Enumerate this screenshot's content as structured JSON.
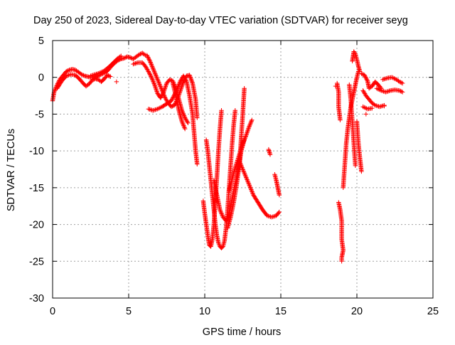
{
  "chart_data": {
    "type": "scatter",
    "title": "Day 250 of 2023, Sidereal Day-to-day VTEC variation (SDTVAR) for receiver seyg",
    "xlabel": "GPS time / hours",
    "ylabel": "SDTVAR / TECUs",
    "xlim": [
      0,
      25
    ],
    "ylim": [
      -30,
      5
    ],
    "xticks": [
      0,
      5,
      10,
      15,
      20,
      25
    ],
    "yticks": [
      5,
      0,
      -5,
      -10,
      -15,
      -20,
      -25,
      -30
    ],
    "grid": true,
    "marker": "+",
    "series": [
      {
        "name": "SDTVAR",
        "color": "#ff0000",
        "tracks": [
          [
            [
              0.0,
              -3.2
            ],
            [
              0.1,
              -2.0
            ],
            [
              0.3,
              -1.0
            ],
            [
              0.5,
              -0.2
            ],
            [
              0.7,
              0.3
            ],
            [
              0.9,
              0.8
            ],
            [
              1.1,
              1.0
            ],
            [
              1.3,
              1.1
            ],
            [
              1.5,
              1.0
            ],
            [
              1.7,
              0.7
            ],
            [
              1.9,
              0.4
            ],
            [
              2.1,
              0.2
            ],
            [
              2.3,
              0.1
            ],
            [
              2.5,
              0.0
            ],
            [
              2.7,
              0.1
            ],
            [
              2.9,
              0.1
            ],
            [
              3.1,
              0.3
            ],
            [
              3.3,
              0.5
            ],
            [
              3.5,
              0.7
            ],
            [
              3.7,
              1.1
            ],
            [
              3.9,
              1.6
            ],
            [
              4.1,
              2.0
            ],
            [
              4.3,
              2.3
            ],
            [
              4.5,
              2.5
            ],
            [
              4.7,
              2.6
            ],
            [
              4.9,
              2.8
            ],
            [
              5.1,
              2.7
            ],
            [
              5.3,
              2.5
            ],
            [
              5.5,
              2.8
            ],
            [
              5.7,
              3.1
            ],
            [
              5.9,
              3.3
            ],
            [
              6.1,
              3.0
            ]
          ],
          [
            [
              0.3,
              -1.5
            ],
            [
              0.6,
              -0.5
            ],
            [
              0.9,
              0.2
            ],
            [
              1.2,
              0.4
            ],
            [
              1.5,
              0.3
            ],
            [
              1.8,
              -0.3
            ],
            [
              2.0,
              -0.8
            ],
            [
              2.2,
              -1.2
            ],
            [
              2.4,
              -0.9
            ],
            [
              2.6,
              -0.4
            ],
            [
              2.8,
              -0.2
            ],
            [
              3.0,
              -0.3
            ],
            [
              3.2,
              -0.6
            ],
            [
              3.4,
              -0.2
            ],
            [
              3.6,
              0.3
            ],
            [
              3.8,
              0.1
            ]
          ],
          [
            [
              2.5,
              0.2
            ],
            [
              2.8,
              0.4
            ],
            [
              3.1,
              0.6
            ],
            [
              3.4,
              0.9
            ],
            [
              3.7,
              1.4
            ],
            [
              4.0,
              2.0
            ],
            [
              4.3,
              2.6
            ],
            [
              4.5,
              2.9
            ]
          ],
          [
            [
              5.3,
              1.8
            ],
            [
              5.6,
              2.0
            ],
            [
              5.9,
              2.0
            ],
            [
              6.1,
              1.5
            ],
            [
              6.3,
              0.8
            ],
            [
              6.5,
              0.0
            ],
            [
              6.7,
              -1.0
            ],
            [
              6.9,
              -2.2
            ],
            [
              7.1,
              -2.8
            ],
            [
              7.3,
              -2.0
            ],
            [
              7.5,
              -0.8
            ],
            [
              7.7,
              -0.3
            ],
            [
              7.9,
              -0.5
            ],
            [
              8.1,
              -1.5
            ],
            [
              8.3,
              -3.0
            ],
            [
              8.5,
              -4.5
            ],
            [
              8.7,
              -5.5
            ],
            [
              8.9,
              -6.2
            ]
          ],
          [
            [
              6.2,
              3.0
            ],
            [
              6.4,
              2.2
            ],
            [
              6.6,
              1.2
            ],
            [
              6.8,
              0.2
            ],
            [
              7.0,
              -0.8
            ],
            [
              7.2,
              -1.8
            ],
            [
              7.4,
              -2.8
            ],
            [
              7.6,
              -3.5
            ],
            [
              7.8,
              -4.0
            ],
            [
              8.0,
              -3.8
            ],
            [
              8.2,
              -3.0
            ],
            [
              8.4,
              -1.8
            ],
            [
              8.6,
              -0.6
            ],
            [
              8.8,
              0.2
            ],
            [
              9.0,
              0.3
            ],
            [
              9.2,
              -0.8
            ],
            [
              9.4,
              -3.0
            ],
            [
              9.5,
              -5.5
            ]
          ],
          [
            [
              6.3,
              -4.3
            ],
            [
              6.6,
              -4.5
            ],
            [
              6.9,
              -4.3
            ],
            [
              7.2,
              -4.0
            ],
            [
              7.5,
              -3.6
            ],
            [
              7.8,
              -3.2
            ],
            [
              8.1,
              -2.0
            ],
            [
              8.4,
              -0.5
            ],
            [
              8.6,
              0.2
            ],
            [
              8.8,
              -0.5
            ],
            [
              9.0,
              -2.5
            ],
            [
              9.2,
              -5.0
            ],
            [
              9.3,
              -7.5
            ],
            [
              9.4,
              -10.0
            ],
            [
              9.5,
              -11.8
            ]
          ],
          [
            [
              7.9,
              -0.8
            ],
            [
              8.1,
              -2.5
            ],
            [
              8.3,
              -4.5
            ],
            [
              8.5,
              -6.0
            ],
            [
              8.7,
              -7.0
            ]
          ],
          [
            [
              10.1,
              -8.5
            ],
            [
              10.2,
              -10.0
            ],
            [
              10.3,
              -12.0
            ],
            [
              10.4,
              -14.0
            ],
            [
              10.5,
              -16.0
            ],
            [
              10.6,
              -18.0
            ],
            [
              10.7,
              -20.0
            ],
            [
              10.8,
              -21.5
            ],
            [
              10.9,
              -22.5
            ],
            [
              11.0,
              -23.0
            ],
            [
              11.1,
              -23.2
            ],
            [
              11.2,
              -23.0
            ],
            [
              11.3,
              -22.2
            ],
            [
              11.4,
              -20.5
            ],
            [
              11.5,
              -18.0
            ],
            [
              11.6,
              -15.0
            ],
            [
              11.7,
              -12.0
            ],
            [
              11.8,
              -9.0
            ],
            [
              11.9,
              -6.5
            ],
            [
              12.0,
              -4.5
            ]
          ],
          [
            [
              9.9,
              -16.8
            ],
            [
              10.0,
              -18.5
            ],
            [
              10.1,
              -20.0
            ],
            [
              10.2,
              -21.5
            ],
            [
              10.3,
              -22.8
            ],
            [
              10.4,
              -23.0
            ],
            [
              10.5,
              -22.0
            ],
            [
              10.6,
              -20.0
            ],
            [
              10.7,
              -17.0
            ],
            [
              10.8,
              -13.5
            ],
            [
              10.9,
              -10.0
            ],
            [
              11.0,
              -7.0
            ],
            [
              11.1,
              -4.5
            ]
          ],
          [
            [
              10.6,
              -14.0
            ],
            [
              10.8,
              -16.0
            ],
            [
              11.0,
              -18.0
            ],
            [
              11.2,
              -19.0
            ],
            [
              11.4,
              -19.5
            ],
            [
              11.6,
              -18.5
            ],
            [
              11.8,
              -16.5
            ],
            [
              12.0,
              -14.5
            ],
            [
              12.2,
              -12.5
            ],
            [
              12.4,
              -10.0
            ],
            [
              12.6,
              -8.5
            ]
          ],
          [
            [
              11.5,
              -20.5
            ],
            [
              11.7,
              -19.0
            ],
            [
              11.9,
              -17.0
            ],
            [
              12.1,
              -14.5
            ],
            [
              12.3,
              -11.5
            ],
            [
              12.4,
              -8.0
            ],
            [
              12.5,
              -5.0
            ],
            [
              12.6,
              -1.5
            ]
          ],
          [
            [
              11.6,
              -15.5
            ],
            [
              11.9,
              -13.0
            ],
            [
              12.2,
              -11.0
            ],
            [
              12.5,
              -9.0
            ],
            [
              12.7,
              -8.0
            ],
            [
              12.9,
              -6.8
            ],
            [
              13.1,
              -5.8
            ]
          ],
          [
            [
              12.3,
              -11.5
            ],
            [
              12.6,
              -13.0
            ],
            [
              12.9,
              -14.5
            ],
            [
              13.2,
              -16.0
            ],
            [
              13.5,
              -17.0
            ],
            [
              13.8,
              -18.0
            ],
            [
              14.1,
              -18.8
            ],
            [
              14.4,
              -19.0
            ],
            [
              14.7,
              -18.8
            ],
            [
              14.9,
              -18.3
            ]
          ],
          [
            [
              14.6,
              -13.2
            ],
            [
              14.7,
              -14.0
            ],
            [
              14.8,
              -15.0
            ],
            [
              14.9,
              -16.0
            ]
          ],
          [
            [
              14.2,
              -9.8
            ],
            [
              14.3,
              -10.5
            ]
          ],
          [
            [
              18.8,
              -17.0
            ],
            [
              18.9,
              -18.0
            ],
            [
              19.0,
              -19.5
            ],
            [
              19.0,
              -22.0
            ],
            [
              19.1,
              -23.5
            ],
            [
              19.0,
              -24.5
            ],
            [
              19.0,
              -25.0
            ]
          ],
          [
            [
              19.1,
              -15.0
            ],
            [
              19.2,
              -12.0
            ],
            [
              19.3,
              -9.0
            ],
            [
              19.4,
              -7.0
            ],
            [
              19.5,
              -5.5
            ],
            [
              19.6,
              -4.0
            ],
            [
              19.7,
              -3.0
            ],
            [
              19.8,
              -2.0
            ],
            [
              19.9,
              -1.0
            ],
            [
              20.0,
              0.0
            ],
            [
              20.1,
              0.8
            ]
          ],
          [
            [
              18.7,
              -0.8
            ],
            [
              18.8,
              -2.0
            ],
            [
              18.8,
              -4.0
            ],
            [
              18.9,
              -5.8
            ]
          ],
          [
            [
              19.5,
              -1.0
            ],
            [
              19.6,
              -3.0
            ],
            [
              19.7,
              -6.0
            ],
            [
              19.8,
              -9.0
            ],
            [
              19.9,
              -12.0
            ]
          ],
          [
            [
              20.0,
              -6.0
            ],
            [
              20.1,
              -9.0
            ],
            [
              20.2,
              -11.0
            ],
            [
              20.3,
              -12.8
            ]
          ],
          [
            [
              19.7,
              2.2
            ],
            [
              19.8,
              3.5
            ],
            [
              19.9,
              3.2
            ],
            [
              20.0,
              2.4
            ],
            [
              20.1,
              1.5
            ],
            [
              20.2,
              0.8
            ]
          ],
          [
            [
              20.3,
              0.5
            ],
            [
              20.5,
              0.3
            ],
            [
              20.7,
              -0.5
            ],
            [
              20.8,
              -1.5
            ],
            [
              21.0,
              -1.2
            ],
            [
              21.2,
              -0.6
            ],
            [
              21.4,
              -1.0
            ],
            [
              21.6,
              -1.5
            ]
          ],
          [
            [
              20.4,
              -1.8
            ],
            [
              20.6,
              -2.5
            ],
            [
              20.8,
              -3.0
            ],
            [
              21.0,
              -3.5
            ],
            [
              21.2,
              -3.8
            ],
            [
              21.5,
              -4.0
            ],
            [
              21.8,
              -3.8
            ]
          ],
          [
            [
              21.3,
              -1.5
            ],
            [
              21.6,
              -1.8
            ],
            [
              21.9,
              -2.0
            ],
            [
              22.2,
              -1.8
            ],
            [
              22.5,
              -1.7
            ],
            [
              22.8,
              -1.8
            ],
            [
              23.0,
              -2.0
            ]
          ],
          [
            [
              21.7,
              -0.3
            ],
            [
              22.0,
              -0.1
            ],
            [
              22.3,
              0.0
            ],
            [
              22.6,
              -0.3
            ],
            [
              22.8,
              -0.6
            ],
            [
              23.0,
              -0.8
            ]
          ],
          [
            [
              20.4,
              -4.0
            ],
            [
              20.7,
              -4.3
            ],
            [
              21.0,
              -4.2
            ]
          ]
        ],
        "isolated": [
          [
            4.2,
            -0.6
          ],
          [
            18.6,
            -1.2
          ],
          [
            20.6,
            -5.0
          ],
          [
            21.8,
            -3.9
          ]
        ]
      }
    ]
  }
}
